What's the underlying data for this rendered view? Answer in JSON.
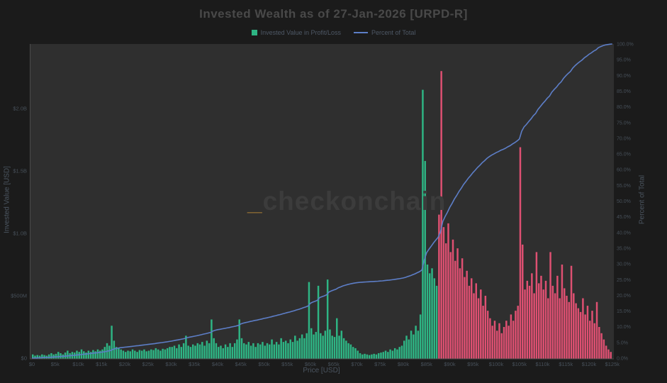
{
  "title": "Invested Wealth as of 27-Jan-2026 [URPD-R]",
  "legend": {
    "items": [
      {
        "label": "Invested Value in Profit/Loss",
        "swatch": "square",
        "color": "#2eb584"
      },
      {
        "label": "Percent of Total",
        "swatch": "line",
        "color": "#5d7ec7"
      }
    ]
  },
  "watermark": {
    "prefix": "_",
    "text": "checkonchain"
  },
  "colors": {
    "background": "#1b1b1b",
    "plot_background": "#2f2f2f",
    "profit_green": "#2eb584",
    "loss_red": "#df5072",
    "percent_line_blue": "#5d7ec7",
    "axis_line": "#4a4a4a",
    "tick_text": "#47505a",
    "title_text": "#494949",
    "watermark_accent": "#8a6a33"
  },
  "chart_data": {
    "type": "bar",
    "title": "Invested Wealth as of 27-Jan-2026 [URPD-R]",
    "xlabel": "Price [USD]",
    "ylabel_left": "Invested Value [USD]",
    "ylabel_right": "Percent of Total",
    "x_axis": {
      "range_k": [
        0,
        125.5
      ],
      "tick_values_k": [
        0,
        5,
        10,
        15,
        20,
        25,
        30,
        35,
        40,
        45,
        50,
        55,
        60,
        65,
        70,
        75,
        80,
        85,
        90,
        95,
        100,
        105,
        110,
        115,
        120,
        125
      ],
      "tick_labels": [
        "$0",
        "$5k",
        "$10k",
        "$15k",
        "$20k",
        "$25k",
        "$30k",
        "$35k",
        "$40k",
        "$45k",
        "$50k",
        "$55k",
        "$60k",
        "$65k",
        "$70k",
        "$75k",
        "$80k",
        "$85k",
        "$90k",
        "$95k",
        "$100k",
        "$105k",
        "$110k",
        "$115k",
        "$120k",
        "$125k"
      ]
    },
    "y_left_axis": {
      "range_billions": [
        0,
        2.52
      ],
      "tick_values_billions": [
        0,
        0.5,
        1.0,
        1.5,
        2.0
      ],
      "tick_labels": [
        "$0",
        "$500M",
        "$1.0B",
        "$1.5B",
        "$2.0B"
      ]
    },
    "y_right_axis": {
      "range_percent": [
        0,
        100
      ],
      "tick_values_percent": [
        0,
        5,
        10,
        15,
        20,
        25,
        30,
        35,
        40,
        45,
        50,
        55,
        60,
        65,
        70,
        75,
        80,
        85,
        90,
        95,
        100
      ],
      "tick_labels": [
        "0.0%",
        "5.0%",
        "10.0%",
        "15.0%",
        "20.0%",
        "25.0%",
        "30.0%",
        "35.0%",
        "40.0%",
        "45.0%",
        "50.0%",
        "55.0%",
        "60.0%",
        "65.0%",
        "70.0%",
        "75.0%",
        "80.0%",
        "85.0%",
        "90.0%",
        "95.0%",
        "100.0%"
      ]
    },
    "bars": {
      "name": "Invested Value in Profit/Loss",
      "bin_width_usd": 500,
      "first_bin_price_k": 0,
      "spot_price_boundary_k": 87.5,
      "note": "bins below spot are in profit (green), above spot in loss (red); values in USD billions",
      "values_billions": [
        0.03,
        0.02,
        0.025,
        0.02,
        0.03,
        0.025,
        0.02,
        0.03,
        0.04,
        0.03,
        0.035,
        0.05,
        0.04,
        0.03,
        0.045,
        0.06,
        0.04,
        0.05,
        0.045,
        0.06,
        0.05,
        0.07,
        0.055,
        0.045,
        0.06,
        0.05,
        0.065,
        0.055,
        0.07,
        0.06,
        0.07,
        0.09,
        0.12,
        0.1,
        0.26,
        0.14,
        0.09,
        0.08,
        0.07,
        0.06,
        0.05,
        0.06,
        0.055,
        0.07,
        0.06,
        0.05,
        0.065,
        0.06,
        0.07,
        0.055,
        0.06,
        0.07,
        0.065,
        0.08,
        0.07,
        0.06,
        0.075,
        0.07,
        0.08,
        0.09,
        0.09,
        0.1,
        0.08,
        0.11,
        0.09,
        0.12,
        0.18,
        0.1,
        0.09,
        0.11,
        0.1,
        0.12,
        0.11,
        0.13,
        0.1,
        0.14,
        0.12,
        0.31,
        0.16,
        0.12,
        0.09,
        0.1,
        0.08,
        0.11,
        0.09,
        0.12,
        0.09,
        0.12,
        0.15,
        0.31,
        0.16,
        0.12,
        0.11,
        0.13,
        0.1,
        0.12,
        0.09,
        0.12,
        0.11,
        0.13,
        0.1,
        0.12,
        0.11,
        0.15,
        0.11,
        0.13,
        0.11,
        0.16,
        0.13,
        0.14,
        0.12,
        0.15,
        0.13,
        0.18,
        0.14,
        0.16,
        0.19,
        0.16,
        0.2,
        0.61,
        0.24,
        0.19,
        0.21,
        0.58,
        0.2,
        0.18,
        0.22,
        0.63,
        0.23,
        0.18,
        0.17,
        0.32,
        0.18,
        0.22,
        0.16,
        0.14,
        0.12,
        0.11,
        0.09,
        0.08,
        0.06,
        0.04,
        0.03,
        0.035,
        0.03,
        0.025,
        0.03,
        0.035,
        0.03,
        0.04,
        0.045,
        0.05,
        0.06,
        0.05,
        0.07,
        0.06,
        0.08,
        0.07,
        0.09,
        0.1,
        0.14,
        0.18,
        0.15,
        0.22,
        0.19,
        0.26,
        0.22,
        0.35,
        2.15,
        1.58,
        0.75,
        0.68,
        0.72,
        0.64,
        0.58,
        1.15,
        2.3,
        1.05,
        0.92,
        1.08,
        0.85,
        0.95,
        0.78,
        0.88,
        0.72,
        0.8,
        0.65,
        0.7,
        0.58,
        0.64,
        0.52,
        0.6,
        0.48,
        0.55,
        0.42,
        0.5,
        0.38,
        0.32,
        0.26,
        0.3,
        0.22,
        0.28,
        0.2,
        0.25,
        0.3,
        0.26,
        0.35,
        0.3,
        0.38,
        0.42,
        1.69,
        0.91,
        0.55,
        0.62,
        0.58,
        0.68,
        0.52,
        0.85,
        0.6,
        0.66,
        0.55,
        0.62,
        0.48,
        0.85,
        0.58,
        0.52,
        0.66,
        0.48,
        0.75,
        0.56,
        0.5,
        0.45,
        0.74,
        0.52,
        0.44,
        0.4,
        0.37,
        0.48,
        0.35,
        0.42,
        0.3,
        0.38,
        0.28,
        0.45,
        0.25,
        0.2,
        0.15,
        0.1,
        0.07,
        0.05
      ]
    },
    "line_series": {
      "name": "Percent of Total",
      "type": "line",
      "derivation": "cumulative sum of bar values normalized to 100%",
      "start_percent": 0,
      "end_percent": 100
    }
  }
}
